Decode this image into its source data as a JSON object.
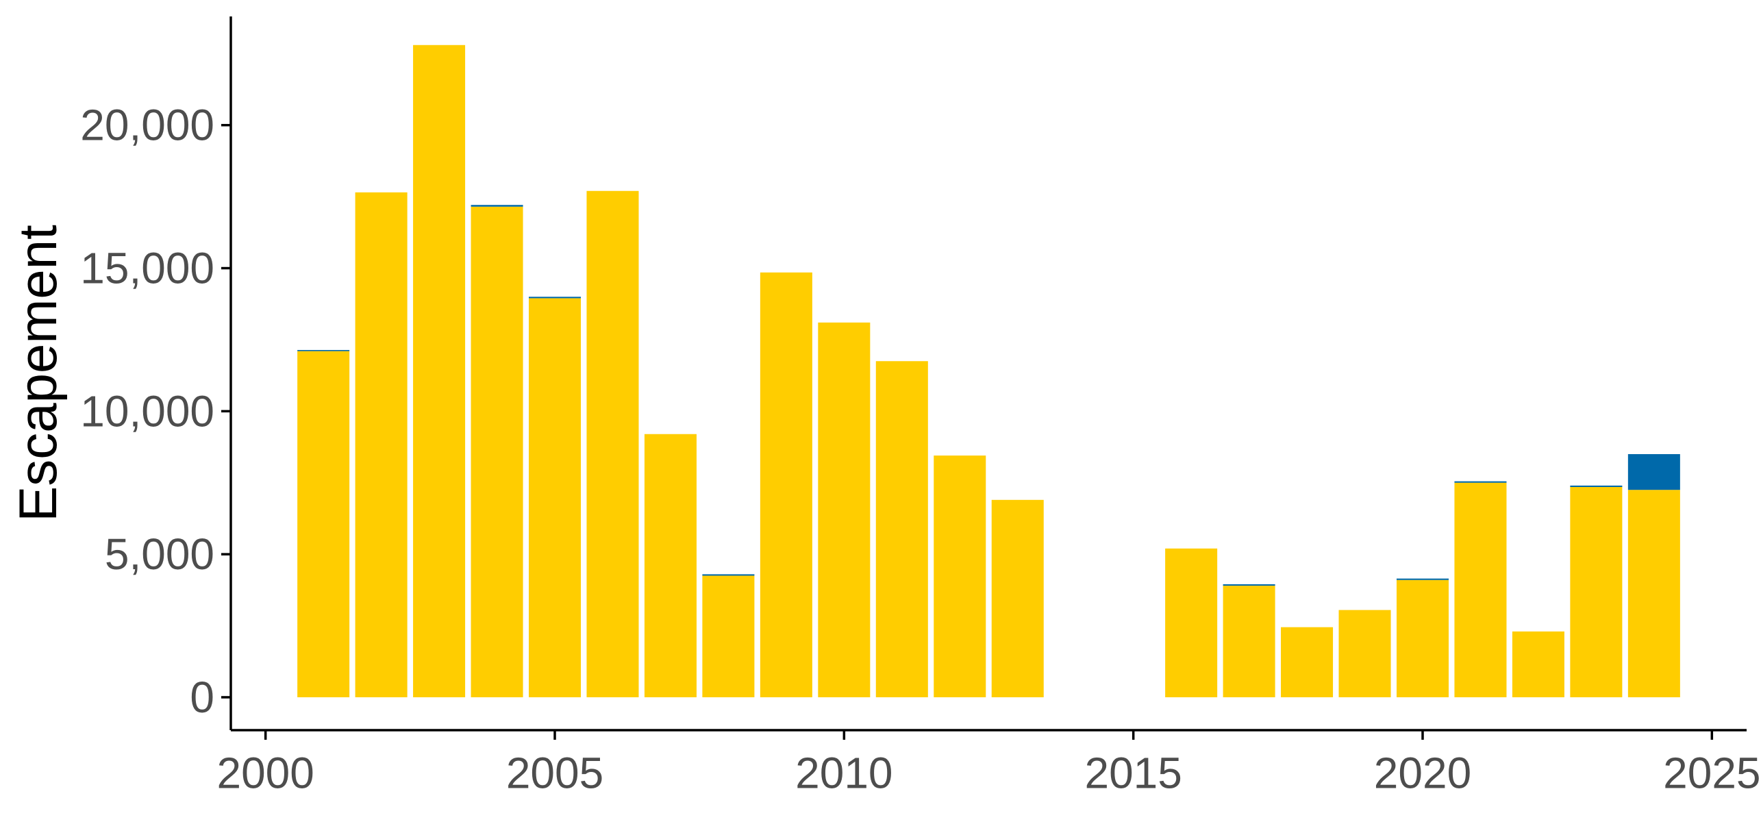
{
  "chart_data": {
    "type": "bar",
    "stacked": true,
    "title": "",
    "xlabel": "",
    "ylabel": "Escapement",
    "xlim": [
      1999.4,
      2025.6
    ],
    "ylim": [
      -1150,
      23800
    ],
    "x_ticks": [
      {
        "value": 2000,
        "label": "2000"
      },
      {
        "value": 2005,
        "label": "2005"
      },
      {
        "value": 2010,
        "label": "2010"
      },
      {
        "value": 2015,
        "label": "2015"
      },
      {
        "value": 2020,
        "label": "2020"
      },
      {
        "value": 2025,
        "label": "2025"
      }
    ],
    "y_ticks": [
      {
        "value": 0,
        "label": "0"
      },
      {
        "value": 5000,
        "label": "5,000"
      },
      {
        "value": 10000,
        "label": "10,000"
      },
      {
        "value": 15000,
        "label": "15,000"
      },
      {
        "value": 20000,
        "label": "20,000"
      }
    ],
    "grid": false,
    "legend": "none",
    "x": [
      2001,
      2002,
      2003,
      2004,
      2005,
      2006,
      2007,
      2008,
      2009,
      2010,
      2011,
      2012,
      2013,
      2016,
      2017,
      2018,
      2019,
      2020,
      2021,
      2022,
      2023,
      2024
    ],
    "series": [
      {
        "color": "#FFCD00",
        "values": [
          12100,
          17650,
          22800,
          17150,
          13950,
          17700,
          9200,
          4250,
          14850,
          13100,
          11750,
          8450,
          6900,
          5200,
          3900,
          2450,
          3050,
          4100,
          7500,
          2300,
          7350,
          7250
        ]
      },
      {
        "color": "#0069AA",
        "values": [
          40,
          0,
          0,
          60,
          50,
          0,
          0,
          50,
          0,
          0,
          0,
          0,
          0,
          0,
          50,
          0,
          0,
          50,
          50,
          0,
          50,
          1250
        ]
      }
    ]
  }
}
